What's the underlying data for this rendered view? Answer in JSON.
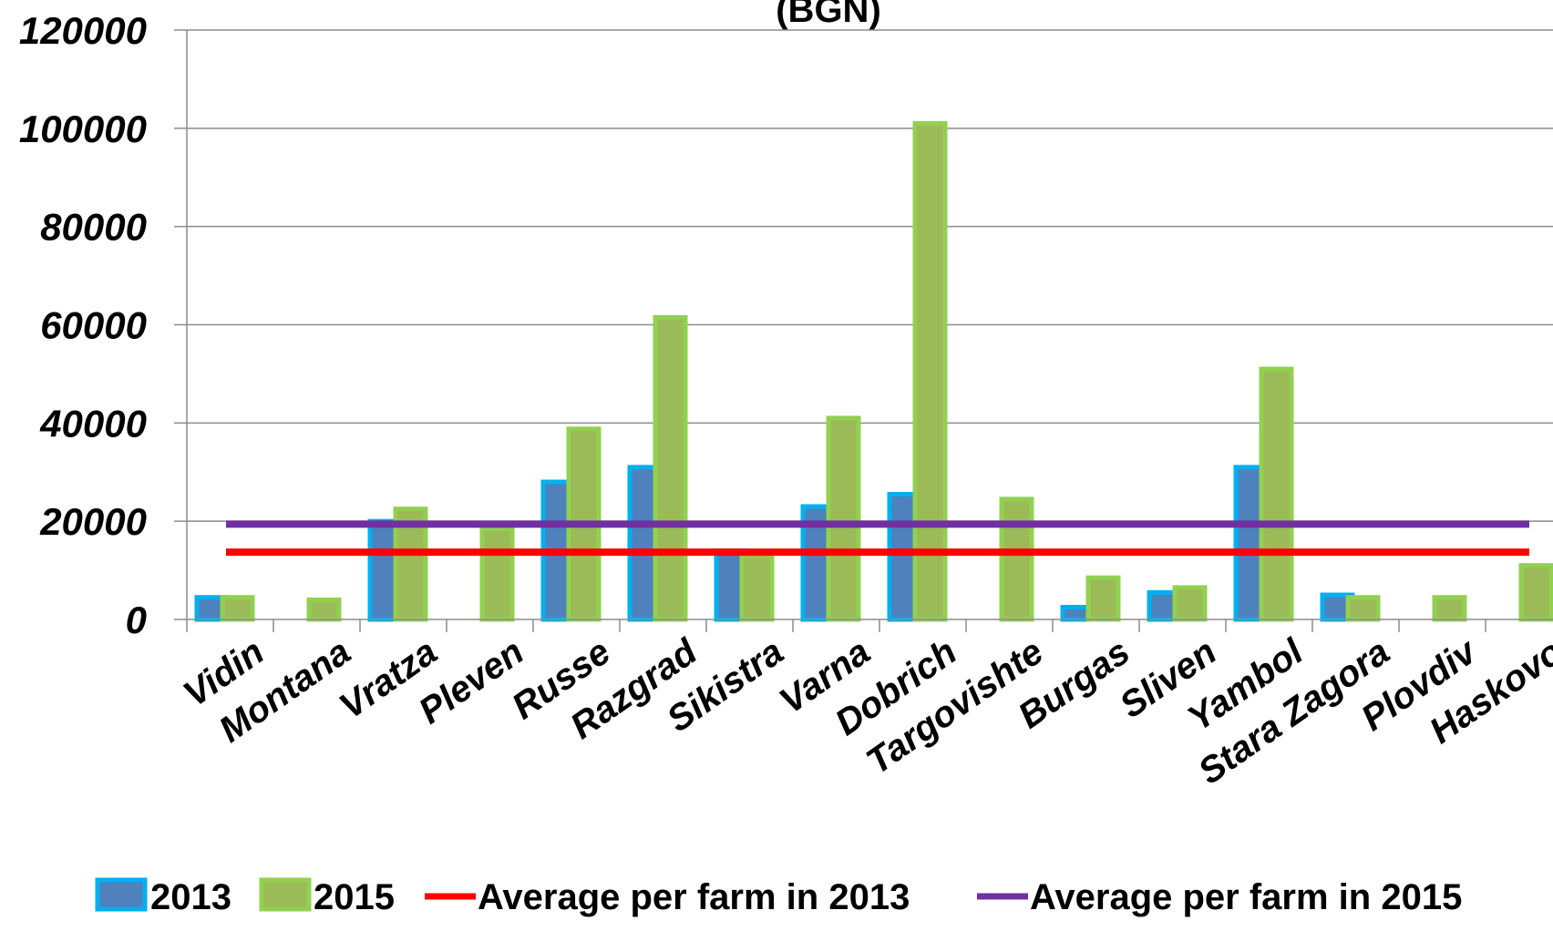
{
  "chart_data": {
    "type": "bar",
    "title": "(BGN)",
    "categories": [
      "Vidin",
      "Montana",
      "Vratza",
      "Pleven",
      "Russe",
      "Razgrad",
      "Sikistra",
      "Varna",
      "Dobrich",
      "Targovishte",
      "Burgas",
      "Sliven",
      "Yambol",
      "Stara Zagora",
      "Plovdiv",
      "Haskovo"
    ],
    "series": [
      {
        "name": "2013",
        "values": [
          4500,
          0,
          20000,
          0,
          28000,
          31000,
          14000,
          23000,
          25500,
          0,
          2500,
          5500,
          31000,
          5000,
          0,
          0
        ],
        "color": "#4F81BD",
        "border_color": "#00B0F0"
      },
      {
        "name": "2015",
        "values": [
          4500,
          4000,
          22500,
          18500,
          38800,
          61500,
          13000,
          41000,
          101000,
          24500,
          8500,
          6500,
          51000,
          4500,
          4500,
          11000
        ],
        "color": "#9BBB59",
        "border_color": "#92D050"
      }
    ],
    "lines": [
      {
        "name": "Average per  farm in  2013",
        "value": 13700,
        "color": "#FF0000"
      },
      {
        "name": "Average per  farm in 2015",
        "value": 19400,
        "color": "#7030A0"
      }
    ],
    "ylim": [
      0,
      120000
    ],
    "yticks": [
      "0",
      "20000",
      "40000",
      "60000",
      "80000",
      "100000",
      "120000"
    ],
    "grid": true,
    "legend_position": "bottom"
  }
}
